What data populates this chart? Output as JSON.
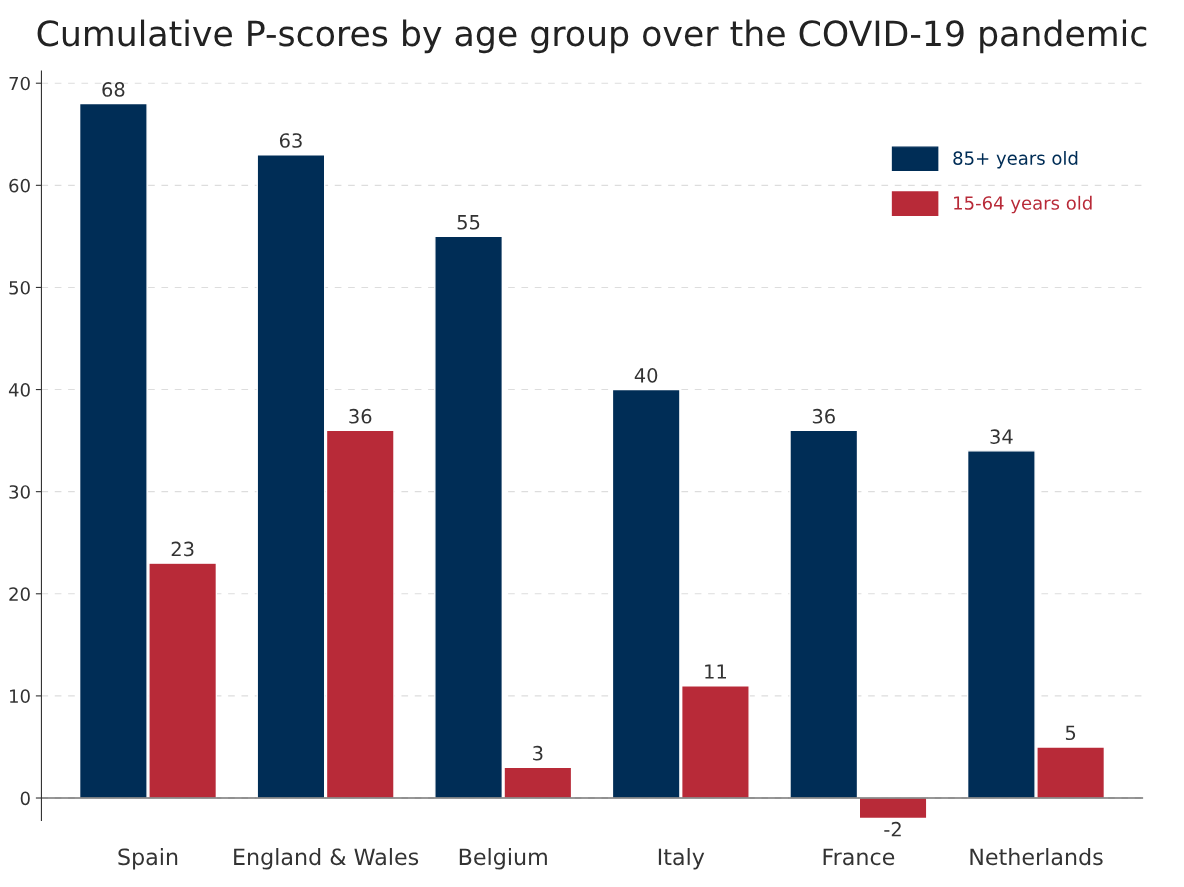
{
  "chart_data": {
    "type": "bar",
    "title": "Cumulative P-scores by age group over the COVID-19 pandemic",
    "categories": [
      "Spain",
      "England & Wales",
      "Belgium",
      "Italy",
      "France",
      "Netherlands"
    ],
    "series": [
      {
        "name": "85+ years old",
        "color": "#002d56",
        "values": [
          68,
          63,
          55,
          40,
          36,
          34
        ]
      },
      {
        "name": "15-64 years old",
        "color": "#b82a38",
        "values": [
          23,
          36,
          3,
          11,
          -2,
          5
        ]
      }
    ],
    "ylim": [
      -2.2,
      71.2
    ],
    "yticks": [
      0,
      10,
      20,
      30,
      40,
      50,
      60,
      70
    ],
    "grid": "y",
    "legend": "top right",
    "data_labels": true
  }
}
